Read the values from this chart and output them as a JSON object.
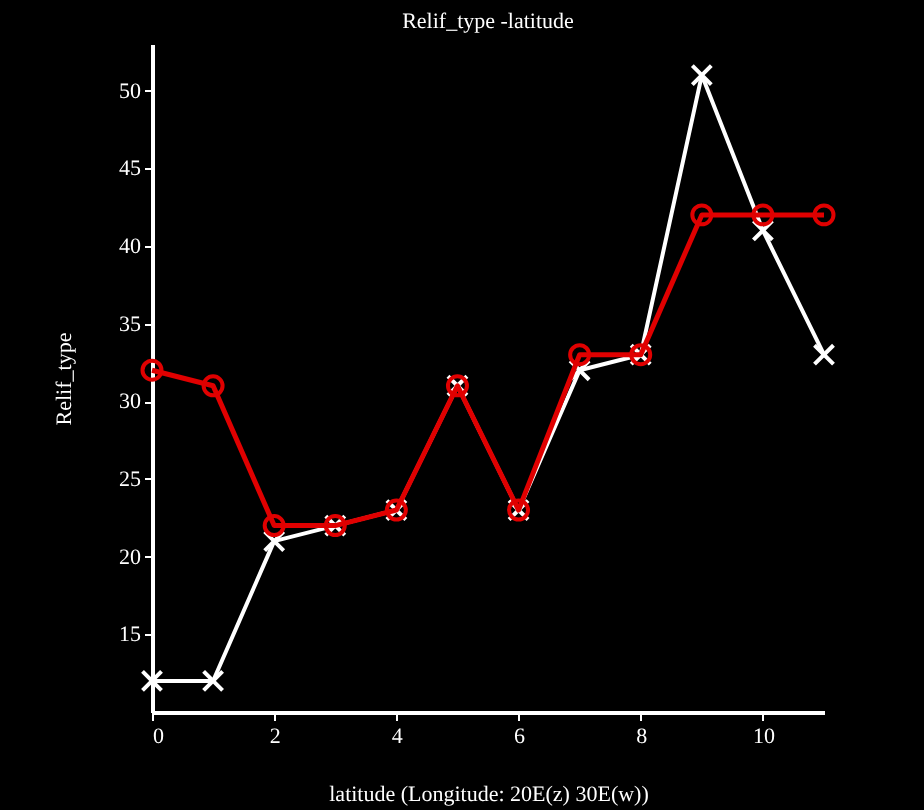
{
  "chart_data": {
    "type": "line",
    "title": "Relif_type -latitude",
    "xlabel": "latitude  (Longitude: 20E(z) 30E(w))",
    "ylabel": "Relif_type",
    "x": [
      0,
      1,
      2,
      3,
      4,
      5,
      6,
      7,
      8,
      9,
      10,
      11
    ],
    "series": [
      {
        "color": "#ffffff",
        "marker": "cross",
        "values": [
          12,
          12,
          21,
          22,
          23,
          31,
          23,
          32,
          33,
          51,
          41,
          33
        ]
      },
      {
        "color": "#e00000",
        "marker": "circle",
        "values": [
          32,
          31,
          22,
          22,
          23,
          31,
          23,
          33,
          33,
          42,
          42,
          42
        ]
      }
    ],
    "xlim": [
      0,
      11
    ],
    "xticks": [
      0,
      2,
      4,
      6,
      8,
      10
    ],
    "ylim": [
      10,
      53
    ],
    "yticks": [
      15,
      20,
      25,
      30,
      35,
      40,
      45,
      50
    ]
  }
}
